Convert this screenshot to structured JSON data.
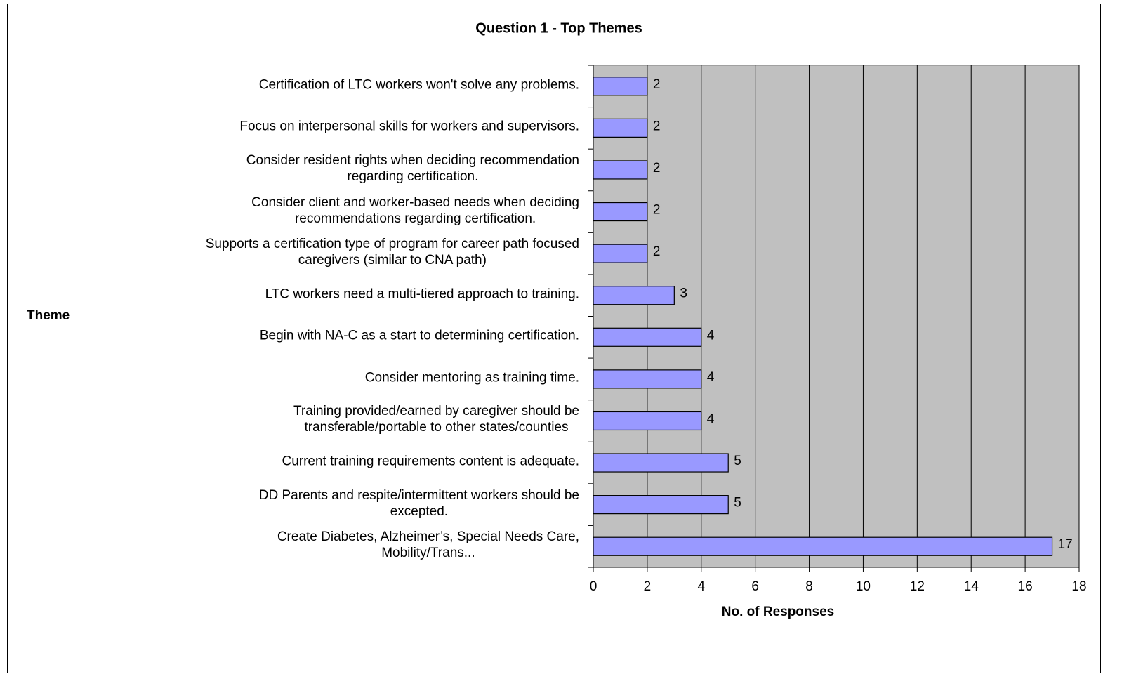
{
  "chart_data": {
    "type": "bar",
    "orientation": "horizontal",
    "title": "Question 1 - Top Themes",
    "x_label": "No. of Responses",
    "y_label": "Theme",
    "categories": [
      "Certification of LTC workers won't solve any problems.",
      "Focus on interpersonal skills for workers and supervisors.",
      "Consider resident rights when deciding recommendation\nregarding certification.",
      "Consider client and worker-based needs when deciding\nrecommendations regarding certification.",
      "Supports a certification type of program for career path focused\ncaregivers (similar to CNA path)",
      "LTC workers need a multi-tiered approach to training.",
      "Begin with NA-C as a start to determining certification.",
      "Consider mentoring as training time.",
      "Training provided/earned by caregiver should be\ntransferable/portable to other states/counties",
      "Current training requirements content is adequate.",
      "DD Parents and respite/intermittent workers should be\nexcepted.",
      "Create Diabetes, Alzheimer’s, Special Needs Care,\nMobility/Trans..."
    ],
    "values": [
      2,
      2,
      2,
      2,
      2,
      3,
      4,
      4,
      4,
      5,
      5,
      17
    ],
    "color": "#9999ff",
    "xlim": [
      0,
      18
    ],
    "xticks": [
      0,
      2,
      4,
      6,
      8,
      10,
      12,
      14,
      16,
      18
    ],
    "grid": true
  }
}
